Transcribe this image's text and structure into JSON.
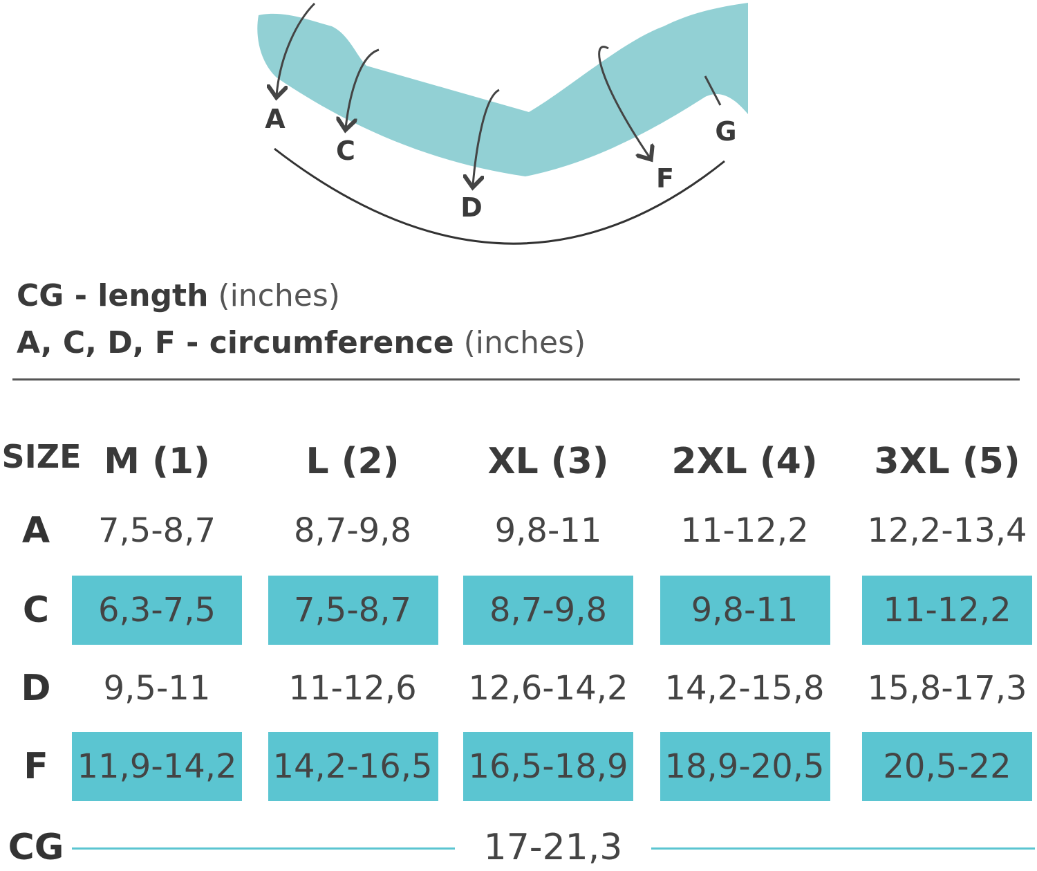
{
  "diagram": {
    "labels": [
      "A",
      "C",
      "D",
      "F",
      "G"
    ]
  },
  "legend": [
    {
      "term": "CG - length",
      "unit": "(inches)"
    },
    {
      "term": "A, C, D, F - circumference",
      "unit": "(inches)"
    }
  ],
  "table": {
    "header": [
      "SIZE",
      "M (1)",
      "L (2)",
      "XL (3)",
      "2XL (4)",
      "3XL (5)"
    ],
    "rows": [
      [
        "A",
        "7,5-8,7",
        "8,7-9,8",
        "9,8-11",
        "11-12,2",
        "12,2-13,4"
      ],
      [
        "C",
        "6,3-7,5",
        "7,5-8,7",
        "8,7-9,8",
        "9,8-11",
        "11-12,2"
      ],
      [
        "D",
        "9,5-11",
        "11-12,6",
        "12,6-14,2",
        "14,2-15,8",
        "15,8-17,3"
      ],
      [
        "F",
        "11,9-14,2",
        "14,2-16,5",
        "16,5-18,9",
        "18,9-20,5",
        "20,5-22"
      ]
    ]
  },
  "footer_row": {
    "label": "CG",
    "value": "17-21,3"
  }
}
